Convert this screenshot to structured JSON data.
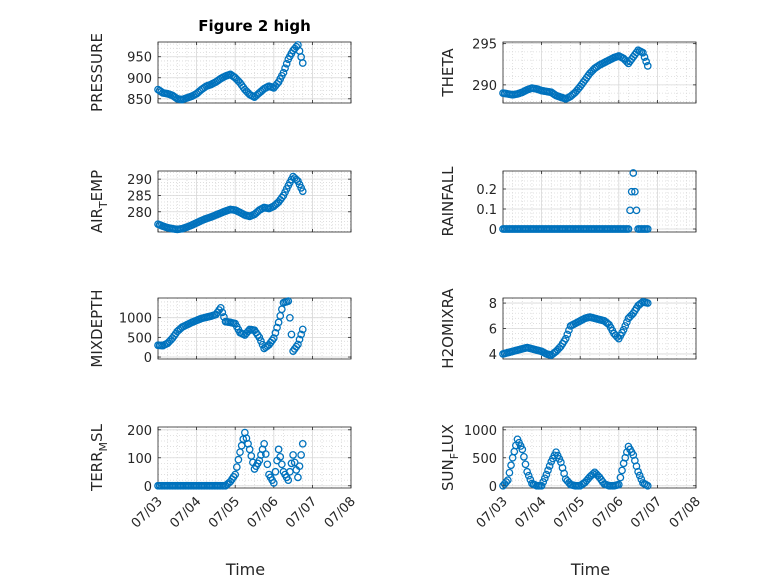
{
  "figure": {
    "title": "Figure 2 high"
  },
  "colors": {
    "marker": "#0072BD",
    "grid": "#d9d9d9",
    "axis": "#262626"
  },
  "chart_data": [
    {
      "type": "scatter",
      "title": "Figure 2 high",
      "ylabel": "PRESSURE",
      "ylim": [
        840,
        985
      ],
      "yticks": [
        850,
        900,
        950
      ],
      "ytick_labels": [
        "850",
        "900",
        "950"
      ],
      "x": [
        "07/03 00:00",
        "07/03 03:00",
        "07/03 06:00",
        "07/03 09:00",
        "07/03 12:00",
        "07/03 15:00",
        "07/03 18:00",
        "07/03 21:00",
        "07/04 00:00",
        "07/04 03:00",
        "07/04 06:00",
        "07/04 09:00",
        "07/04 12:00",
        "07/04 15:00",
        "07/04 18:00",
        "07/04 21:00",
        "07/05 00:00",
        "07/05 03:00",
        "07/05 06:00",
        "07/05 09:00",
        "07/05 12:00",
        "07/05 15:00",
        "07/05 18:00",
        "07/05 21:00",
        "07/06 00:00",
        "07/06 03:00",
        "07/06 06:00",
        "07/06 09:00",
        "07/06 12:00",
        "07/06 15:00",
        "07/06 18:00"
      ],
      "y": [
        872,
        864,
        862,
        858,
        850,
        848,
        852,
        856,
        862,
        872,
        880,
        884,
        890,
        898,
        904,
        908,
        900,
        888,
        872,
        860,
        854,
        864,
        874,
        880,
        876,
        890,
        912,
        944,
        965,
        978,
        935
      ]
    },
    {
      "type": "scatter",
      "ylabel": "THETA",
      "ylim": [
        287.8,
        295.2
      ],
      "yticks": [
        290,
        295
      ],
      "ytick_labels": [
        "290",
        "295"
      ],
      "x": [
        "07/03 00:00",
        "07/03 03:00",
        "07/03 06:00",
        "07/03 09:00",
        "07/03 12:00",
        "07/03 15:00",
        "07/03 18:00",
        "07/03 21:00",
        "07/04 00:00",
        "07/04 03:00",
        "07/04 06:00",
        "07/04 09:00",
        "07/04 12:00",
        "07/04 15:00",
        "07/04 18:00",
        "07/04 21:00",
        "07/05 00:00",
        "07/05 03:00",
        "07/05 06:00",
        "07/05 09:00",
        "07/05 12:00",
        "07/05 15:00",
        "07/05 18:00",
        "07/05 21:00",
        "07/06 00:00",
        "07/06 03:00",
        "07/06 06:00",
        "07/06 09:00",
        "07/06 12:00",
        "07/06 15:00",
        "07/06 18:00"
      ],
      "y": [
        289.0,
        288.9,
        288.8,
        288.9,
        289.1,
        289.4,
        289.6,
        289.5,
        289.3,
        289.2,
        289.1,
        288.7,
        288.5,
        288.3,
        288.6,
        289.1,
        289.8,
        290.6,
        291.4,
        292.0,
        292.4,
        292.7,
        293.0,
        293.3,
        293.5,
        293.2,
        292.6,
        293.4,
        294.2,
        293.9,
        292.3
      ]
    },
    {
      "type": "scatter",
      "ylabel": "AIR_TEMP",
      "ylabel_display": [
        "AIR",
        "T",
        "EMP"
      ],
      "ylim": [
        273.8,
        292.5
      ],
      "yticks": [
        280,
        285,
        290
      ],
      "ytick_labels": [
        "280",
        "285",
        "290"
      ],
      "x": [
        "07/03 00:00",
        "07/03 03:00",
        "07/03 06:00",
        "07/03 09:00",
        "07/03 12:00",
        "07/03 15:00",
        "07/03 18:00",
        "07/03 21:00",
        "07/04 00:00",
        "07/04 03:00",
        "07/04 06:00",
        "07/04 09:00",
        "07/04 12:00",
        "07/04 15:00",
        "07/04 18:00",
        "07/04 21:00",
        "07/05 00:00",
        "07/05 03:00",
        "07/05 06:00",
        "07/05 09:00",
        "07/05 12:00",
        "07/05 15:00",
        "07/05 18:00",
        "07/05 21:00",
        "07/06 00:00",
        "07/06 03:00",
        "07/06 06:00",
        "07/06 09:00",
        "07/06 12:00",
        "07/06 15:00",
        "07/06 18:00"
      ],
      "y": [
        276.2,
        275.6,
        275.1,
        274.8,
        274.6,
        274.8,
        275.3,
        275.9,
        276.6,
        277.3,
        277.9,
        278.4,
        279.0,
        279.6,
        280.2,
        280.7,
        280.5,
        279.8,
        279.0,
        278.6,
        279.2,
        280.5,
        281.3,
        281.0,
        281.7,
        283.0,
        285.0,
        288.0,
        290.8,
        289.4,
        286.3
      ]
    },
    {
      "type": "scatter",
      "ylabel": "RAINFALL",
      "ylim": [
        -0.015,
        0.29
      ],
      "yticks": [
        0,
        0.1,
        0.2
      ],
      "ytick_labels": [
        "0",
        "0.1",
        "0.2"
      ],
      "x": [
        "07/03 00:00",
        "07/03 03:00",
        "07/03 06:00",
        "07/03 09:00",
        "07/03 12:00",
        "07/03 15:00",
        "07/03 18:00",
        "07/03 21:00",
        "07/04 00:00",
        "07/04 03:00",
        "07/04 06:00",
        "07/04 09:00",
        "07/04 12:00",
        "07/04 15:00",
        "07/04 18:00",
        "07/04 21:00",
        "07/05 00:00",
        "07/05 03:00",
        "07/05 06:00",
        "07/05 09:00",
        "07/05 12:00",
        "07/05 15:00",
        "07/05 18:00",
        "07/05 21:00",
        "07/06 00:00",
        "07/06 03:00",
        "07/06 06:00",
        "07/06 09:00",
        "07/06 12:00",
        "07/06 15:00",
        "07/06 18:00"
      ],
      "y": [
        0,
        0,
        0,
        0,
        0,
        0,
        0,
        0,
        0,
        0,
        0,
        0,
        0,
        0,
        0,
        0,
        0,
        0,
        0,
        0,
        0,
        0,
        0,
        0,
        0,
        0,
        0,
        0.28,
        0,
        0,
        0
      ]
    },
    {
      "type": "scatter",
      "ylabel": "MIXDEPTH",
      "ylim": [
        -50,
        1500
      ],
      "yticks": [
        0,
        500,
        1000
      ],
      "ytick_labels": [
        "0",
        "500",
        "1000"
      ],
      "x": [
        "07/03 00:00",
        "07/03 03:00",
        "07/03 06:00",
        "07/03 09:00",
        "07/03 12:00",
        "07/03 15:00",
        "07/03 18:00",
        "07/03 21:00",
        "07/04 00:00",
        "07/04 03:00",
        "07/04 06:00",
        "07/04 09:00",
        "07/04 12:00",
        "07/04 15:00",
        "07/04 18:00",
        "07/04 21:00",
        "07/05 00:00",
        "07/05 03:00",
        "07/05 06:00",
        "07/05 09:00",
        "07/05 12:00",
        "07/05 15:00",
        "07/05 18:00",
        "07/05 21:00",
        "07/06 00:00",
        "07/06 03:00",
        "07/06 06:00",
        "07/06 09:00",
        "07/06 12:00",
        "07/06 15:00",
        "07/06 18:00"
      ],
      "y": [
        300,
        290,
        350,
        480,
        650,
        760,
        820,
        880,
        930,
        980,
        1010,
        1040,
        1080,
        1250,
        900,
        880,
        850,
        620,
        560,
        700,
        680,
        500,
        220,
        310,
        480,
        880,
        1380,
        1420,
        150,
        320,
        700
      ]
    },
    {
      "type": "scatter",
      "ylabel": "H2OMIXRA",
      "ylim": [
        3.6,
        8.4
      ],
      "yticks": [
        4,
        6,
        8
      ],
      "ytick_labels": [
        "4",
        "6",
        "8"
      ],
      "x": [
        "07/03 00:00",
        "07/03 03:00",
        "07/03 06:00",
        "07/03 09:00",
        "07/03 12:00",
        "07/03 15:00",
        "07/03 18:00",
        "07/03 21:00",
        "07/04 00:00",
        "07/04 03:00",
        "07/04 06:00",
        "07/04 09:00",
        "07/04 12:00",
        "07/04 15:00",
        "07/04 18:00",
        "07/04 21:00",
        "07/05 00:00",
        "07/05 03:00",
        "07/05 06:00",
        "07/05 09:00",
        "07/05 12:00",
        "07/05 15:00",
        "07/05 18:00",
        "07/05 21:00",
        "07/06 00:00",
        "07/06 03:00",
        "07/06 06:00",
        "07/06 09:00",
        "07/06 12:00",
        "07/06 15:00",
        "07/06 18:00"
      ],
      "y": [
        4.0,
        4.1,
        4.2,
        4.3,
        4.4,
        4.5,
        4.4,
        4.3,
        4.2,
        4.0,
        3.9,
        4.2,
        4.6,
        5.2,
        6.2,
        6.4,
        6.6,
        6.8,
        6.9,
        6.8,
        6.7,
        6.6,
        6.3,
        5.6,
        5.2,
        5.9,
        6.8,
        7.2,
        7.8,
        8.1,
        8.0
      ]
    },
    {
      "type": "scatter",
      "ylabel": "TERR_MSL",
      "ylabel_display": [
        "TERR",
        "M",
        "SL"
      ],
      "ylim": [
        -8,
        210
      ],
      "yticks": [
        0,
        100,
        200
      ],
      "ytick_labels": [
        "0",
        "100",
        "200"
      ],
      "xticks": [
        "07/03",
        "07/04",
        "07/05",
        "07/06",
        "07/07",
        "07/08"
      ],
      "x": [
        "07/03 00:00",
        "07/03 03:00",
        "07/03 06:00",
        "07/03 09:00",
        "07/03 12:00",
        "07/03 15:00",
        "07/03 18:00",
        "07/03 21:00",
        "07/04 00:00",
        "07/04 03:00",
        "07/04 06:00",
        "07/04 09:00",
        "07/04 12:00",
        "07/04 15:00",
        "07/04 18:00",
        "07/04 21:00",
        "07/05 00:00",
        "07/05 03:00",
        "07/05 06:00",
        "07/05 09:00",
        "07/05 12:00",
        "07/05 15:00",
        "07/05 18:00",
        "07/05 21:00",
        "07/06 00:00",
        "07/06 03:00",
        "07/06 06:00",
        "07/06 09:00",
        "07/06 12:00",
        "07/06 15:00",
        "07/06 18:00"
      ],
      "y": [
        0,
        0,
        0,
        0,
        0,
        0,
        0,
        0,
        0,
        0,
        0,
        0,
        0,
        0,
        0,
        15,
        40,
        120,
        190,
        130,
        60,
        90,
        150,
        40,
        10,
        130,
        50,
        20,
        110,
        30,
        150
      ],
      "xlabel": "Time"
    },
    {
      "type": "scatter",
      "ylabel": "SUN_FLUX",
      "ylabel_display": [
        "SUN",
        "F",
        "LUX"
      ],
      "ylim": [
        -40,
        1050
      ],
      "yticks": [
        0,
        500,
        1000
      ],
      "ytick_labels": [
        "0",
        "500",
        "1000"
      ],
      "xticks": [
        "07/03",
        "07/04",
        "07/05",
        "07/06",
        "07/07",
        "07/08"
      ],
      "x": [
        "07/03 00:00",
        "07/03 03:00",
        "07/03 06:00",
        "07/03 09:00",
        "07/03 12:00",
        "07/03 15:00",
        "07/03 18:00",
        "07/03 21:00",
        "07/04 00:00",
        "07/04 03:00",
        "07/04 06:00",
        "07/04 09:00",
        "07/04 12:00",
        "07/04 15:00",
        "07/04 18:00",
        "07/04 21:00",
        "07/05 00:00",
        "07/05 03:00",
        "07/05 06:00",
        "07/05 09:00",
        "07/05 12:00",
        "07/05 15:00",
        "07/05 18:00",
        "07/05 21:00",
        "07/06 00:00",
        "07/06 03:00",
        "07/06 06:00",
        "07/06 09:00",
        "07/06 12:00",
        "07/06 15:00",
        "07/06 18:00"
      ],
      "y": [
        0,
        100,
        500,
        830,
        650,
        250,
        40,
        0,
        0,
        200,
        430,
        600,
        420,
        120,
        20,
        0,
        0,
        60,
        160,
        240,
        150,
        30,
        0,
        0,
        20,
        400,
        700,
        550,
        250,
        50,
        0
      ],
      "xlabel": "Time"
    }
  ]
}
